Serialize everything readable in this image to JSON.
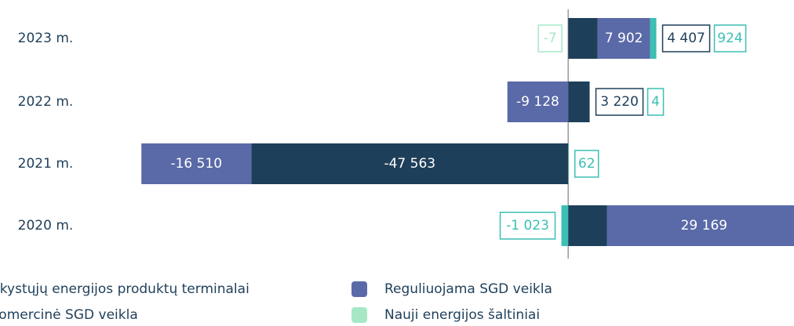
{
  "chart_data": {
    "type": "diverging_bar",
    "categories": [
      "2023 m.",
      "2022 m.",
      "2021 m.",
      "2020 m."
    ],
    "xlim": [
      -85300,
      33900
    ],
    "series": [
      {
        "name": "Skystųjų energijos produktų terminalai",
        "color": "#1e3f5a",
        "values": [
          4407,
          3220,
          -47563,
          5812
        ],
        "value_labels": [
          "4 407",
          "3 220",
          "-47 563",
          "5 812"
        ]
      },
      {
        "name": "Reguliuojama SGD veikla",
        "color": "#5a69a7",
        "values": [
          7902,
          -9128,
          -16510,
          29169
        ],
        "value_labels": [
          "7 902",
          "-9 128",
          "-16 510",
          "29 169"
        ]
      },
      {
        "name": "Komercinė SGD veikla",
        "color": "#3cbfb4",
        "values": [
          924,
          4,
          62,
          -1023
        ],
        "value_labels": [
          "924",
          "4",
          "62",
          "-1 023"
        ]
      },
      {
        "name": "Nauji energijos šaltiniai",
        "color": "#a6e8c6",
        "values": [
          -7,
          null,
          null,
          null
        ],
        "value_labels": [
          "-7",
          null,
          null,
          null
        ]
      }
    ]
  }
}
